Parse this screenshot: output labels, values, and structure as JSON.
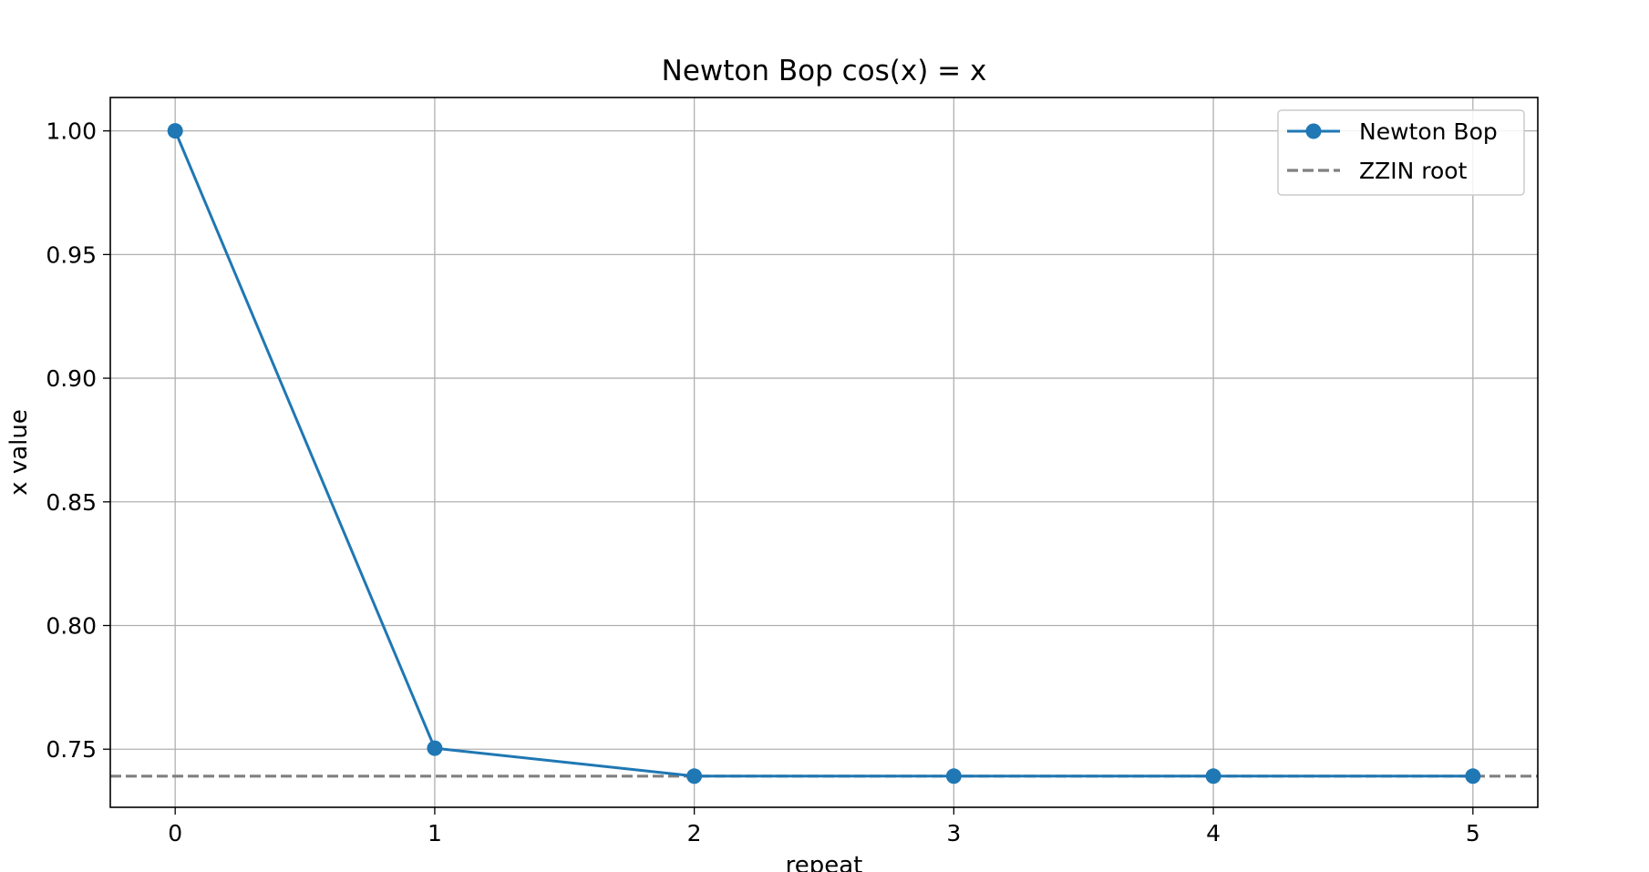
{
  "chart_data": {
    "type": "line",
    "title": "Newton Bop cos(x) = x",
    "xlabel": "repeat",
    "ylabel": "x value",
    "x": [
      0,
      1,
      2,
      3,
      4,
      5
    ],
    "xticks": [
      "0",
      "1",
      "2",
      "3",
      "4",
      "5"
    ],
    "yticks": [
      "0.75",
      "0.80",
      "0.85",
      "0.90",
      "0.95",
      "1.00"
    ],
    "xlim": [
      -0.25,
      5.25
    ],
    "ylim": [
      0.7265,
      1.0135
    ],
    "grid": true,
    "legend_position": "top-right",
    "series": [
      {
        "name": "Newton Bop",
        "style": "solid-line-with-circle-markers",
        "color": "#1f77b4",
        "values": [
          1.0,
          0.7504,
          0.7391,
          0.7391,
          0.7391,
          0.7391
        ]
      }
    ],
    "reference_lines": [
      {
        "name": "ZZIN root",
        "orientation": "horizontal",
        "style": "dashed",
        "color": "#808080",
        "y": 0.7391
      }
    ]
  }
}
